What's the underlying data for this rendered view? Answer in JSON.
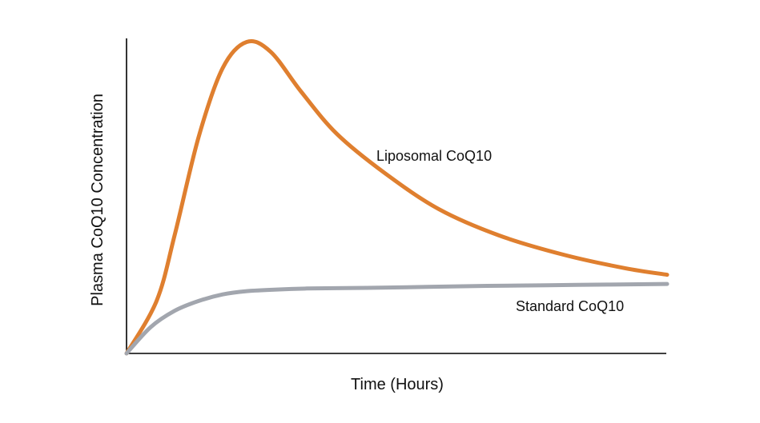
{
  "chart_data": {
    "type": "line",
    "title": "",
    "xlabel": "Time (Hours)",
    "ylabel": "Plasma CoQ10 Concentration",
    "xlim": [
      0,
      10
    ],
    "ylim": [
      0,
      10
    ],
    "grid": false,
    "ticks_shown": false,
    "series": [
      {
        "name": "Liposomal CoQ10",
        "color": "#df7f2f",
        "x": [
          0,
          0.5,
          0.8,
          1.2,
          1.6,
          2.0,
          2.4,
          2.9,
          3.5,
          4.3,
          5.2,
          6.2,
          7.3,
          8.3,
          9.0
        ],
        "y": [
          0.0,
          1.6,
          3.6,
          6.6,
          8.7,
          9.5,
          9.2,
          8.0,
          6.7,
          5.5,
          4.4,
          3.6,
          3.0,
          2.6,
          2.4
        ]
      },
      {
        "name": "Standard CoQ10",
        "color": "#a2a6ae",
        "x": [
          0,
          0.4,
          0.8,
          1.2,
          1.6,
          2.0,
          2.5,
          3.0,
          4.0,
          5.0,
          6.0,
          7.0,
          8.0,
          9.0
        ],
        "y": [
          0.0,
          0.8,
          1.3,
          1.6,
          1.8,
          1.9,
          1.95,
          1.98,
          2.0,
          2.03,
          2.06,
          2.08,
          2.1,
          2.12
        ]
      }
    ]
  }
}
